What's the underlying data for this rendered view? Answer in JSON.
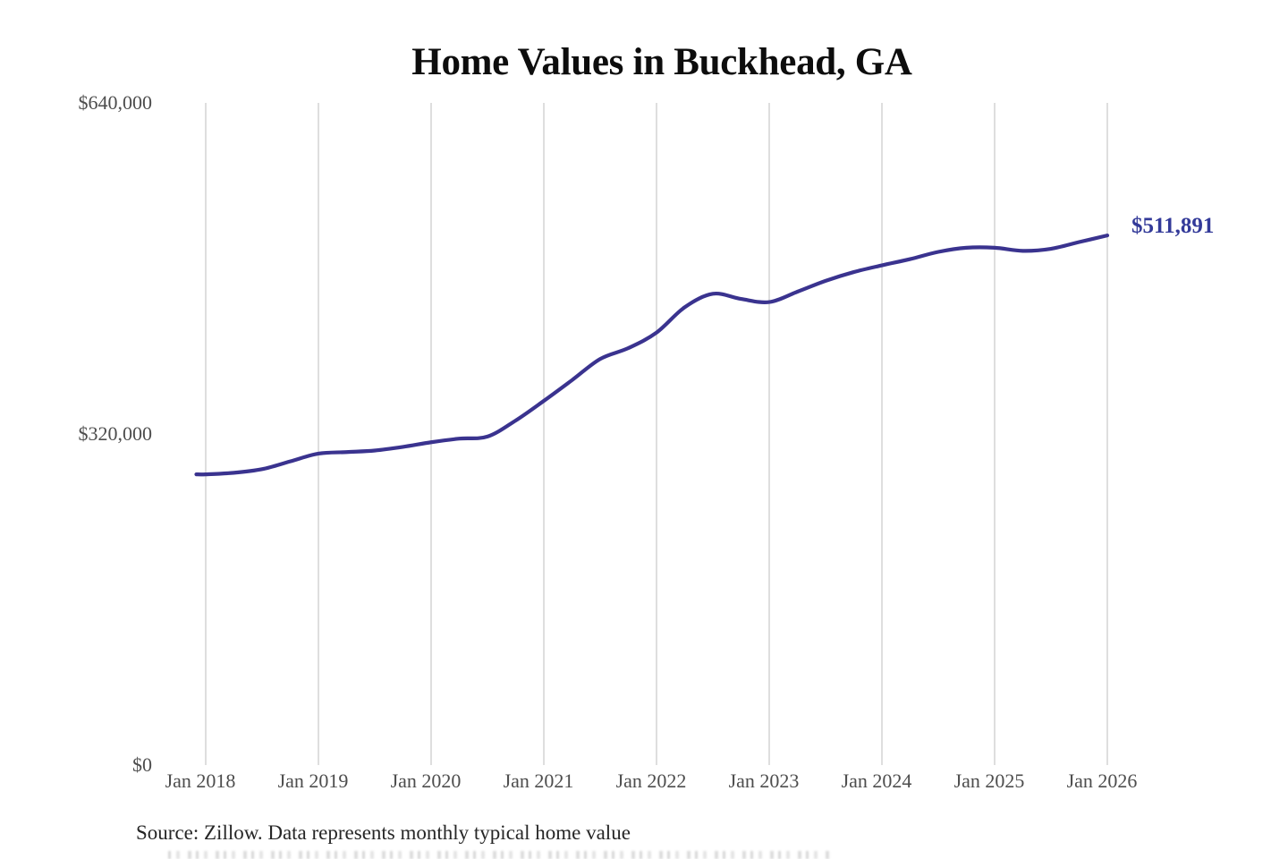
{
  "chart_data": {
    "type": "line",
    "title": "Home Values in Buckhead, GA",
    "subtitle": "",
    "xlabel": "",
    "ylabel": "",
    "ylim": [
      0,
      640000
    ],
    "grid": "vertical-only",
    "legend": "none",
    "y_ticks": [
      {
        "label": "$640,000",
        "value": 640000
      },
      {
        "label": "$320,000",
        "value": 320000
      },
      {
        "label": "$0",
        "value": 0
      }
    ],
    "x_ticks": [
      "Jan 2018",
      "Jan 2019",
      "Jan 2020",
      "Jan 2021",
      "Jan 2022",
      "Jan 2023",
      "Jan 2024",
      "Jan 2025",
      "Jan 2026"
    ],
    "series_name": "Typical home value",
    "x": [
      "2017-12",
      "2018-01",
      "2018-04",
      "2018-07",
      "2018-10",
      "2019-01",
      "2019-04",
      "2019-07",
      "2019-10",
      "2020-01",
      "2020-04",
      "2020-07",
      "2020-10",
      "2021-01",
      "2021-04",
      "2021-07",
      "2021-10",
      "2022-01",
      "2022-04",
      "2022-07",
      "2022-10",
      "2023-01",
      "2023-04",
      "2023-07",
      "2023-10",
      "2024-01",
      "2024-04",
      "2024-07",
      "2024-10",
      "2025-01",
      "2025-04",
      "2025-07",
      "2025-10",
      "2026-01"
    ],
    "values": [
      281000,
      281000,
      282500,
      286000,
      293500,
      301000,
      302500,
      304000,
      307500,
      312000,
      315500,
      317500,
      333000,
      352000,
      372000,
      392500,
      403000,
      418000,
      442500,
      455500,
      450500,
      447500,
      457500,
      468000,
      476500,
      483000,
      489000,
      496000,
      500000,
      500000,
      497000,
      499000,
      505500,
      511891
    ],
    "end_label": "$511,891",
    "final_value": 511891,
    "source_note": "Source: Zillow. Data represents monthly typical home value",
    "colors": {
      "line": "#3a338f",
      "end_label": "#333a99",
      "gridline": "#cdcdcd",
      "tick_text": "#4d4d4d",
      "title_text": "#0d0d0d",
      "background": "#ffffff"
    }
  }
}
